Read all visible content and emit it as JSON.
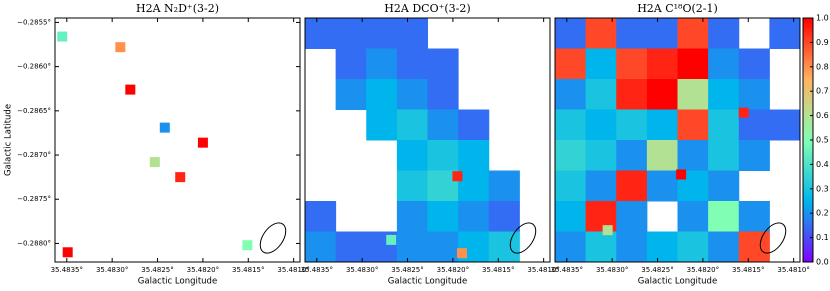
{
  "chart_data": [
    {
      "type": "heatmap",
      "title": "H2A N₂D⁺(3-2)",
      "xlabel": "Galactic Longitude",
      "ylabel": "Galactic Latitude",
      "xlim": [
        35.48363,
        35.48093
      ],
      "ylim": [
        -0.28821,
        -0.28545
      ],
      "xticks": [
        {
          "value": 35.4835,
          "label": "35.4835°"
        },
        {
          "value": 35.483,
          "label": "35.4830°"
        },
        {
          "value": 35.4825,
          "label": "35.4825°"
        },
        {
          "value": 35.482,
          "label": "35.4820°"
        },
        {
          "value": 35.4815,
          "label": "35.4815°"
        },
        {
          "value": 35.481,
          "label": "35.4810°"
        }
      ],
      "yticks": [
        {
          "value": -0.2855,
          "label": "−0.2855°"
        },
        {
          "value": -0.286,
          "label": "−0.2860°"
        },
        {
          "value": -0.2865,
          "label": "−0.2865°"
        },
        {
          "value": -0.287,
          "label": "−0.2870°"
        },
        {
          "value": -0.2875,
          "label": "−0.2875°"
        },
        {
          "value": -0.288,
          "label": "−0.2880°"
        }
      ],
      "grid": [],
      "spots": {
        "lon": [
          35.48355,
          35.48291,
          35.4828,
          35.48242,
          35.482,
          35.48253,
          35.48225,
          35.48349,
          35.48151
        ],
        "lat": [
          -0.28566,
          -0.28578,
          -0.28626,
          -0.28669,
          -0.28686,
          -0.28708,
          -0.28725,
          -0.2881,
          -0.28802
        ],
        "values": [
          0.45,
          0.8,
          1.0,
          0.2,
          1.0,
          0.6,
          0.95,
          1.0,
          0.5
        ]
      }
    },
    {
      "type": "heatmap",
      "title": "H2A DCO⁺(3-2)",
      "xlabel": "Galactic Longitude",
      "xlim": [
        35.48363,
        35.48093
      ],
      "ylim": [
        -0.28821,
        -0.28545
      ],
      "xticks": [
        {
          "value": 35.4835,
          "label": "35.4835°"
        },
        {
          "value": 35.483,
          "label": "35.4830°"
        },
        {
          "value": 35.4825,
          "label": "35.4825°"
        },
        {
          "value": 35.482,
          "label": "35.4820°"
        },
        {
          "value": 35.4815,
          "label": "35.4815°"
        },
        {
          "value": 35.481,
          "label": "35.4810°"
        }
      ],
      "grid": [
        [
          0.15,
          0.15,
          0.15,
          0.15,
          null,
          null,
          null,
          null
        ],
        [
          null,
          0.15,
          0.2,
          0.15,
          0.15,
          null,
          null,
          null
        ],
        [
          null,
          0.2,
          0.25,
          0.2,
          0.15,
          null,
          null,
          null
        ],
        [
          null,
          null,
          0.25,
          0.3,
          0.2,
          0.15,
          null,
          null
        ],
        [
          null,
          null,
          null,
          0.25,
          0.3,
          0.25,
          null,
          null
        ],
        [
          null,
          null,
          null,
          0.3,
          0.35,
          0.25,
          0.2,
          null
        ],
        [
          0.15,
          null,
          null,
          0.2,
          0.25,
          0.2,
          0.15,
          null
        ],
        [
          0.2,
          0.15,
          0.15,
          0.2,
          0.2,
          0.25,
          0.3,
          null
        ]
      ],
      "spots": {
        "lon": [
          35.48195,
          35.4819,
          35.48268
        ],
        "lat": [
          -0.28724,
          -0.28811,
          -0.28796
        ],
        "values": [
          0.95,
          0.8,
          0.45
        ]
      }
    },
    {
      "type": "heatmap",
      "title": "H2A C¹⁸O(2-1)",
      "xlabel": "Galactic Longitude",
      "xlim": [
        35.48363,
        35.48093
      ],
      "ylim": [
        -0.28821,
        -0.28545
      ],
      "xticks": [
        {
          "value": 35.4835,
          "label": "35.4835°"
        },
        {
          "value": 35.483,
          "label": "35.4830°"
        },
        {
          "value": 35.4825,
          "label": "35.4825°"
        },
        {
          "value": 35.482,
          "label": "35.4820°"
        },
        {
          "value": 35.4815,
          "label": "35.4815°"
        },
        {
          "value": 35.481,
          "label": "35.4810°"
        }
      ],
      "grid": [
        [
          0.15,
          0.9,
          0.15,
          0.15,
          0.9,
          0.15,
          null,
          0.15
        ],
        [
          0.9,
          0.25,
          0.9,
          0.95,
          1.0,
          0.2,
          0.15,
          null
        ],
        [
          0.2,
          0.3,
          0.95,
          1.0,
          0.6,
          0.25,
          0.2,
          null
        ],
        [
          0.3,
          0.25,
          0.3,
          0.25,
          0.9,
          0.3,
          0.15,
          0.15
        ],
        [
          0.35,
          0.3,
          0.2,
          0.6,
          0.2,
          0.3,
          0.2,
          null
        ],
        [
          0.3,
          0.2,
          0.95,
          0.2,
          0.25,
          0.2,
          null,
          null
        ],
        [
          0.25,
          0.95,
          0.2,
          null,
          0.2,
          0.5,
          0.2,
          null
        ],
        [
          0.2,
          0.3,
          0.2,
          0.25,
          0.3,
          0.2,
          0.9,
          null
        ]
      ],
      "spots": {
        "lon": [
          35.48224,
          35.48155,
          35.48305
        ],
        "lat": [
          -0.28722,
          -0.28652,
          -0.28785
        ],
        "values": [
          1.0,
          0.95,
          0.6
        ]
      }
    }
  ],
  "colorbar": {
    "colormap": [
      "#8000ff",
      "#00b5eb",
      "#80ffb4",
      "#ffb462",
      "#ff0000"
    ],
    "lim": [
      0,
      1
    ],
    "ticks": [
      {
        "value": 0,
        "label": "0.0"
      },
      {
        "value": 0.1,
        "label": "0.1"
      },
      {
        "value": 0.2,
        "label": "0.2"
      },
      {
        "value": 0.3,
        "label": "0.3"
      },
      {
        "value": 0.4,
        "label": "0.4"
      },
      {
        "value": 0.5,
        "label": "0.5"
      },
      {
        "value": 0.6,
        "label": "0.6"
      },
      {
        "value": 0.7,
        "label": "0.7"
      },
      {
        "value": 0.8,
        "label": "0.8"
      },
      {
        "value": 0.9,
        "label": "0.9"
      },
      {
        "value": 1,
        "label": "1.0"
      }
    ]
  }
}
